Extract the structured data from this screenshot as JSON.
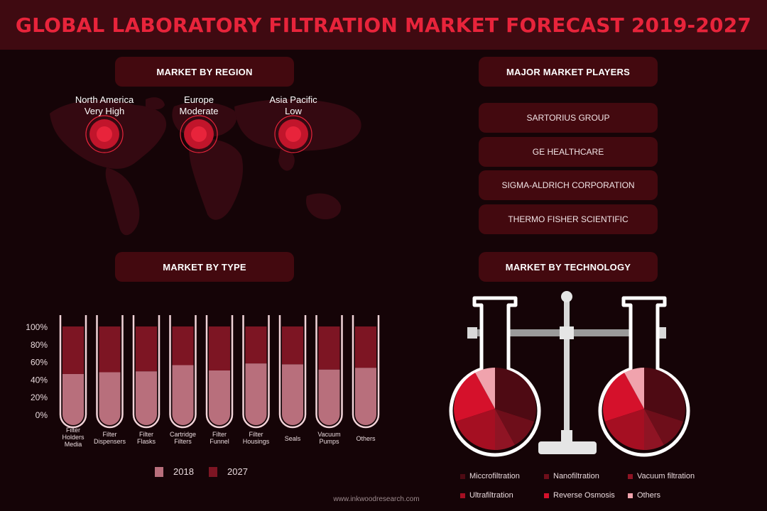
{
  "title": "GLOBAL LABORATORY FILTRATION MARKET FORECAST 2019-2027",
  "sections": {
    "region": "MARKET BY REGION",
    "players": "MAJOR MARKET PLAYERS",
    "type": "MARKET BY TYPE",
    "technology": "MARKET BY TECHNOLOGY"
  },
  "regions": [
    {
      "name": "North America",
      "level": "Very High"
    },
    {
      "name": "Europe",
      "level": "Moderate"
    },
    {
      "name": "Asia Pacific",
      "level": "Low"
    }
  ],
  "players": [
    "SARTORIUS GROUP",
    "GE HEALTHCARE",
    "SIGMA-ALDRICH CORPORATION",
    "THERMO FISHER SCIENTIFIC"
  ],
  "colors": {
    "accent": "#e8243b",
    "pill": "#43090f",
    "tube_2018": "#b86f7c",
    "tube_2027": "#7d1523"
  },
  "chart_data": [
    {
      "type": "bar",
      "stacked": true,
      "categories": [
        "Filter Holders Media",
        "Filter Dispensers",
        "Filter Flasks",
        "Cartridge Filters",
        "Filter Funnel",
        "Filter Housings",
        "Seals",
        "Vacuum Pumps",
        "Others"
      ],
      "category_lines": [
        [
          "Filter",
          "Holders",
          "Media"
        ],
        [
          "Filter",
          "Dispensers"
        ],
        [
          "Filter",
          "Flasks"
        ],
        [
          "Cartridge",
          "Filters"
        ],
        [
          "Filter",
          "Funnel"
        ],
        [
          "Filter",
          "Housings"
        ],
        [
          "Seals"
        ],
        [
          "Vacuum",
          "Pumps"
        ],
        [
          "Others"
        ]
      ],
      "series": [
        {
          "name": "2018",
          "values": [
            46,
            48,
            49,
            56,
            50,
            58,
            57,
            51,
            53
          ]
        },
        {
          "name": "2027",
          "values": [
            54,
            52,
            51,
            44,
            50,
            42,
            43,
            49,
            47
          ]
        }
      ],
      "yticks": [
        "100%",
        "80%",
        "60%",
        "40%",
        "20%",
        "0%"
      ],
      "ylim": [
        0,
        100
      ]
    },
    {
      "type": "pie",
      "labels": [
        "Miccrofiltration",
        "Nanofiltration",
        "Vacuum filtration",
        "Ultrafiltration",
        "Reverse Osmosis",
        "Others"
      ],
      "values": [
        30,
        12,
        8,
        20,
        22,
        8
      ],
      "colors": [
        "#4e0a13",
        "#6e0e1a",
        "#8f1424",
        "#a50f22",
        "#d5112b",
        "#f0a3ad"
      ]
    }
  ],
  "footer": "www.inkwoodresearch.com"
}
